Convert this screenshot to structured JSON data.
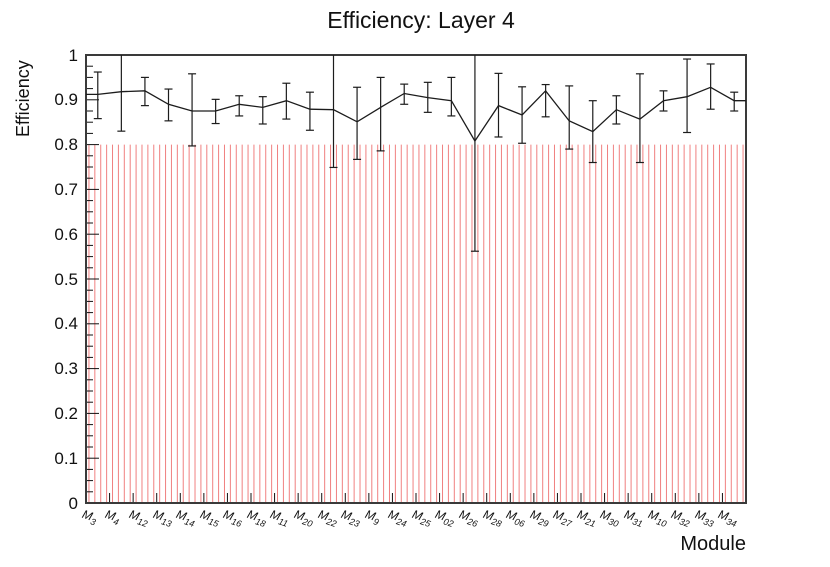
{
  "chart_data": {
    "type": "line",
    "title": "Efficiency: Layer 4",
    "xlabel": "Module",
    "ylabel": "Efficiency",
    "ylim": [
      0,
      1
    ],
    "y_tick_labels": [
      "0",
      "0.1",
      "0.2",
      "0.3",
      "0.4",
      "0.5",
      "0.6",
      "0.7",
      "0.8",
      "0.9",
      "1"
    ],
    "y_minor_tick_step": 0.025,
    "grid": false,
    "legend": "none",
    "categories": [
      "M3",
      "M4",
      "M12",
      "M13",
      "M14",
      "M15",
      "M16",
      "M18",
      "M11",
      "M20",
      "M22",
      "M23",
      "M9",
      "M24",
      "M25",
      "M02",
      "M26",
      "M28",
      "M06",
      "M29",
      "M27",
      "M21",
      "M30",
      "M31",
      "M10",
      "M32",
      "M33",
      "M34"
    ],
    "series": [
      {
        "name": "efficiency",
        "marker": "none",
        "line_color": "#1c1c1c",
        "values": [
          0.912,
          0.918,
          0.92,
          0.89,
          0.875,
          0.875,
          0.89,
          0.883,
          0.898,
          0.879,
          0.878,
          0.851,
          0.883,
          0.914,
          0.905,
          0.898,
          0.808,
          0.887,
          0.866,
          0.92,
          0.853,
          0.829,
          0.878,
          0.857,
          0.898,
          0.907,
          0.928,
          0.898
        ],
        "err_low": [
          0.858,
          0.83,
          0.887,
          0.853,
          0.797,
          0.847,
          0.864,
          0.846,
          0.857,
          0.832,
          0.749,
          0.767,
          0.786,
          0.89,
          0.872,
          0.864,
          0.562,
          0.817,
          0.803,
          0.862,
          0.79,
          0.76,
          0.846,
          0.76,
          0.875,
          0.827,
          0.879,
          0.875
        ],
        "err_high": [
          0.962,
          1.0,
          0.95,
          0.924,
          0.958,
          0.901,
          0.909,
          0.907,
          0.937,
          0.917,
          1.0,
          0.928,
          0.95,
          0.935,
          0.939,
          0.95,
          1.0,
          0.959,
          0.929,
          0.934,
          0.931,
          0.898,
          0.909,
          0.958,
          0.92,
          0.991,
          0.98,
          0.917
        ]
      }
    ],
    "reference_comb": {
      "description": "thin red vertical lines, 4 per module bin, spanning 0 to 0.8",
      "lines_per_bin": 4,
      "top_value": 0.8,
      "bottom_value": 0,
      "color": "#f08080"
    },
    "colors": {
      "frame": "#3a3a3a",
      "ticks": "#111111",
      "line": "#1c1c1c",
      "comb": "#f08080",
      "background": "#ffffff"
    }
  }
}
